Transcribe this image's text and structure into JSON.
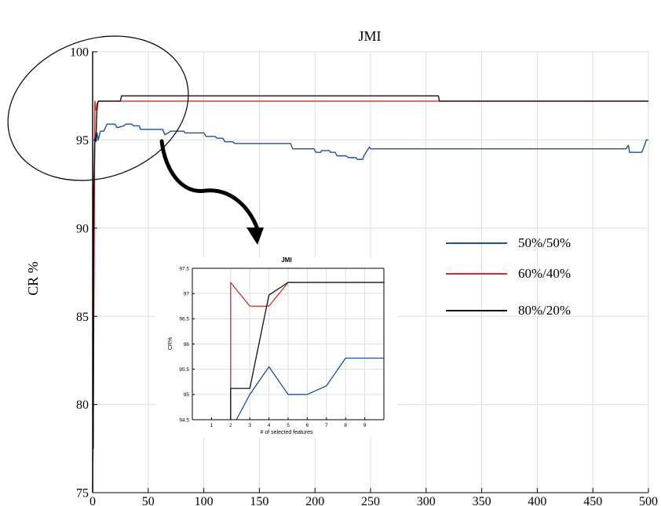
{
  "chart_data": [
    {
      "type": "line",
      "title": "JMI",
      "xlabel": "",
      "ylabel": "CR %",
      "xlim": [
        0,
        500
      ],
      "ylim": [
        75,
        100
      ],
      "xticks": [
        "0",
        "50",
        "100",
        "150",
        "200",
        "250",
        "300",
        "350",
        "400",
        "450",
        "500"
      ],
      "yticks": [
        "75",
        "80",
        "85",
        "90",
        "95",
        "100"
      ],
      "grid": true,
      "legend_position": "right",
      "series": [
        {
          "name": "50%/50%",
          "color": "#1f4e9c",
          "points": [
            [
              0,
              75
            ],
            [
              0.5,
              78.5
            ],
            [
              1,
              90
            ],
            [
              2,
              95.4
            ],
            [
              3,
              94.9
            ],
            [
              4,
              95.4
            ],
            [
              5,
              95.0
            ],
            [
              7,
              95.5
            ],
            [
              10,
              95.5
            ],
            [
              13,
              95.9
            ],
            [
              20,
              95.9
            ],
            [
              22,
              95.7
            ],
            [
              28,
              95.8
            ],
            [
              30,
              95.9
            ],
            [
              35,
              95.9
            ],
            [
              37,
              95.8
            ],
            [
              42,
              95.8
            ],
            [
              43,
              95.6
            ],
            [
              63,
              95.6
            ],
            [
              65,
              95.3
            ],
            [
              68,
              95.4
            ],
            [
              70,
              95.5
            ],
            [
              82,
              95.5
            ],
            [
              83,
              95.4
            ],
            [
              100,
              95.4
            ],
            [
              102,
              95.2
            ],
            [
              110,
              95.2
            ],
            [
              112,
              95.1
            ],
            [
              117,
              95.1
            ],
            [
              119,
              94.9
            ],
            [
              126,
              94.9
            ],
            [
              128,
              94.8
            ],
            [
              178,
              94.8
            ],
            [
              180,
              94.5
            ],
            [
              199,
              94.5
            ],
            [
              201,
              94.3
            ],
            [
              205,
              94.3
            ],
            [
              206,
              94.4
            ],
            [
              213,
              94.4
            ],
            [
              214,
              94.3
            ],
            [
              218,
              94.3
            ],
            [
              220,
              94.1
            ],
            [
              228,
              94.1
            ],
            [
              230,
              94.0
            ],
            [
              237,
              94.0
            ],
            [
              238,
              93.9
            ],
            [
              243,
              93.9
            ],
            [
              244,
              94.1
            ],
            [
              246,
              94.3
            ],
            [
              249,
              94.6
            ],
            [
              250,
              94.5
            ],
            [
              480,
              94.5
            ],
            [
              482,
              94.7
            ],
            [
              483,
              94.3
            ],
            [
              494,
              94.3
            ],
            [
              496,
              94.6
            ],
            [
              498,
              95.0
            ],
            [
              500,
              95.0
            ]
          ]
        },
        {
          "name": "60%/40%",
          "color": "#d62a2a",
          "points": [
            [
              0,
              75
            ],
            [
              0.5,
              78.5
            ],
            [
              1.5,
              90
            ],
            [
              2,
              97.2
            ],
            [
              3,
              96.7
            ],
            [
              4,
              96.7
            ],
            [
              5,
              97.2
            ],
            [
              500,
              97.2
            ]
          ]
        },
        {
          "name": "80%/20%",
          "color": "#111111",
          "points": [
            [
              0,
              75
            ],
            [
              0,
              100
            ],
            [
              0.3,
              78
            ],
            [
              0.6,
              77.5
            ],
            [
              1,
              92
            ],
            [
              2,
              95.1
            ],
            [
              3,
              95.1
            ],
            [
              4,
              97.0
            ],
            [
              5,
              97.2
            ],
            [
              25,
              97.2
            ],
            [
              26,
              97.5
            ],
            [
              311,
              97.5
            ],
            [
              312,
              97.2
            ],
            [
              500,
              97.2
            ]
          ]
        }
      ]
    },
    {
      "type": "line",
      "title": "JMI",
      "xlabel": "# of selected features",
      "ylabel": "CR%",
      "xlim": [
        0,
        10
      ],
      "ylim": [
        94.5,
        97.5
      ],
      "xticks": [
        "1",
        "2",
        "3",
        "4",
        "5",
        "6",
        "7",
        "8",
        "9"
      ],
      "yticks": [
        "94.5",
        "95",
        "95.5",
        "96",
        "96.5",
        "97",
        "97.5"
      ],
      "grid": true,
      "series": [
        {
          "name": "50%/50%",
          "color": "#1f4e9c",
          "points": [
            [
              2.3,
              94.5
            ],
            [
              3,
              95.0
            ],
            [
              4,
              95.55
            ],
            [
              5,
              95.0
            ],
            [
              6,
              95.0
            ],
            [
              7,
              95.17
            ],
            [
              8,
              95.72
            ],
            [
              9,
              95.72
            ],
            [
              10,
              95.72
            ]
          ]
        },
        {
          "name": "60%/40%",
          "color": "#d62a2a",
          "points": [
            [
              2,
              94.5
            ],
            [
              2,
              97.22
            ],
            [
              3,
              96.75
            ],
            [
              4,
              96.75
            ],
            [
              5,
              97.22
            ],
            [
              6,
              97.22
            ],
            [
              7,
              97.22
            ],
            [
              8,
              97.22
            ],
            [
              9,
              97.22
            ],
            [
              10,
              97.22
            ]
          ]
        },
        {
          "name": "80%/20%",
          "color": "#111111",
          "points": [
            [
              2,
              94.5
            ],
            [
              2,
              95.12
            ],
            [
              3,
              95.12
            ],
            [
              4,
              96.97
            ],
            [
              5,
              97.22
            ],
            [
              6,
              97.22
            ],
            [
              7,
              97.22
            ],
            [
              8,
              97.22
            ],
            [
              9,
              97.22
            ],
            [
              10,
              97.22
            ]
          ]
        }
      ]
    }
  ]
}
